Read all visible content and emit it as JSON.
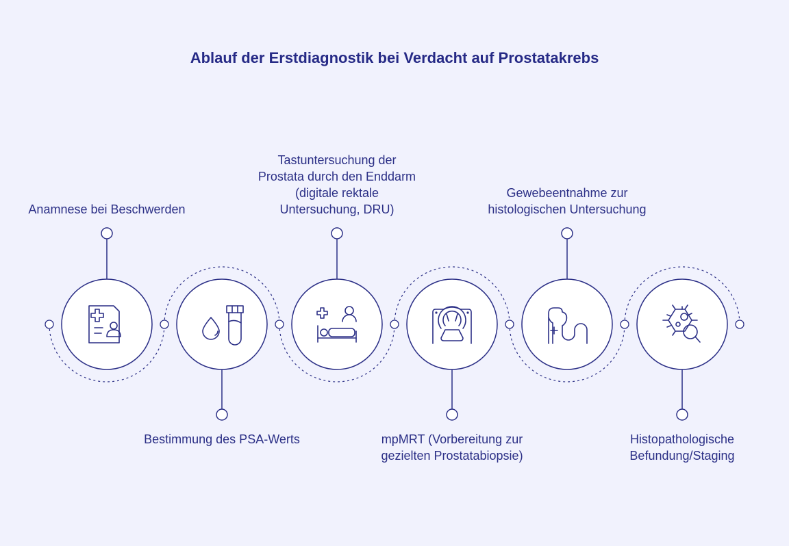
{
  "title": "Ablauf der Erstdiagnostik bei Verdacht auf Prostatakrebs",
  "colors": {
    "background": "#f1f2fd",
    "stroke": "#2b2f86",
    "node_fill": "#ffffff"
  },
  "steps": [
    {
      "label": "Anamnese bei Beschwerden",
      "icon": "medical-record-icon",
      "position": "top"
    },
    {
      "label": "Bestimmung des PSA-Werts",
      "icon": "blood-test-tube-icon",
      "position": "bottom"
    },
    {
      "label": "Tastuntersuchung der Prostata durch den Enddarm (digitale rektale Untersuchung, DRU)",
      "icon": "patient-examination-icon",
      "position": "top"
    },
    {
      "label": "mpMRT (Vorbereitung zur gezielten Prostatabiopsie)",
      "icon": "mri-scanner-icon",
      "position": "bottom"
    },
    {
      "label": "Gewebeentnahme zur histologischen Untersuchung",
      "icon": "biopsy-organ-icon",
      "position": "top"
    },
    {
      "label": "Histopathologische Befundung/Staging",
      "icon": "cell-magnifier-icon",
      "position": "bottom"
    }
  ]
}
